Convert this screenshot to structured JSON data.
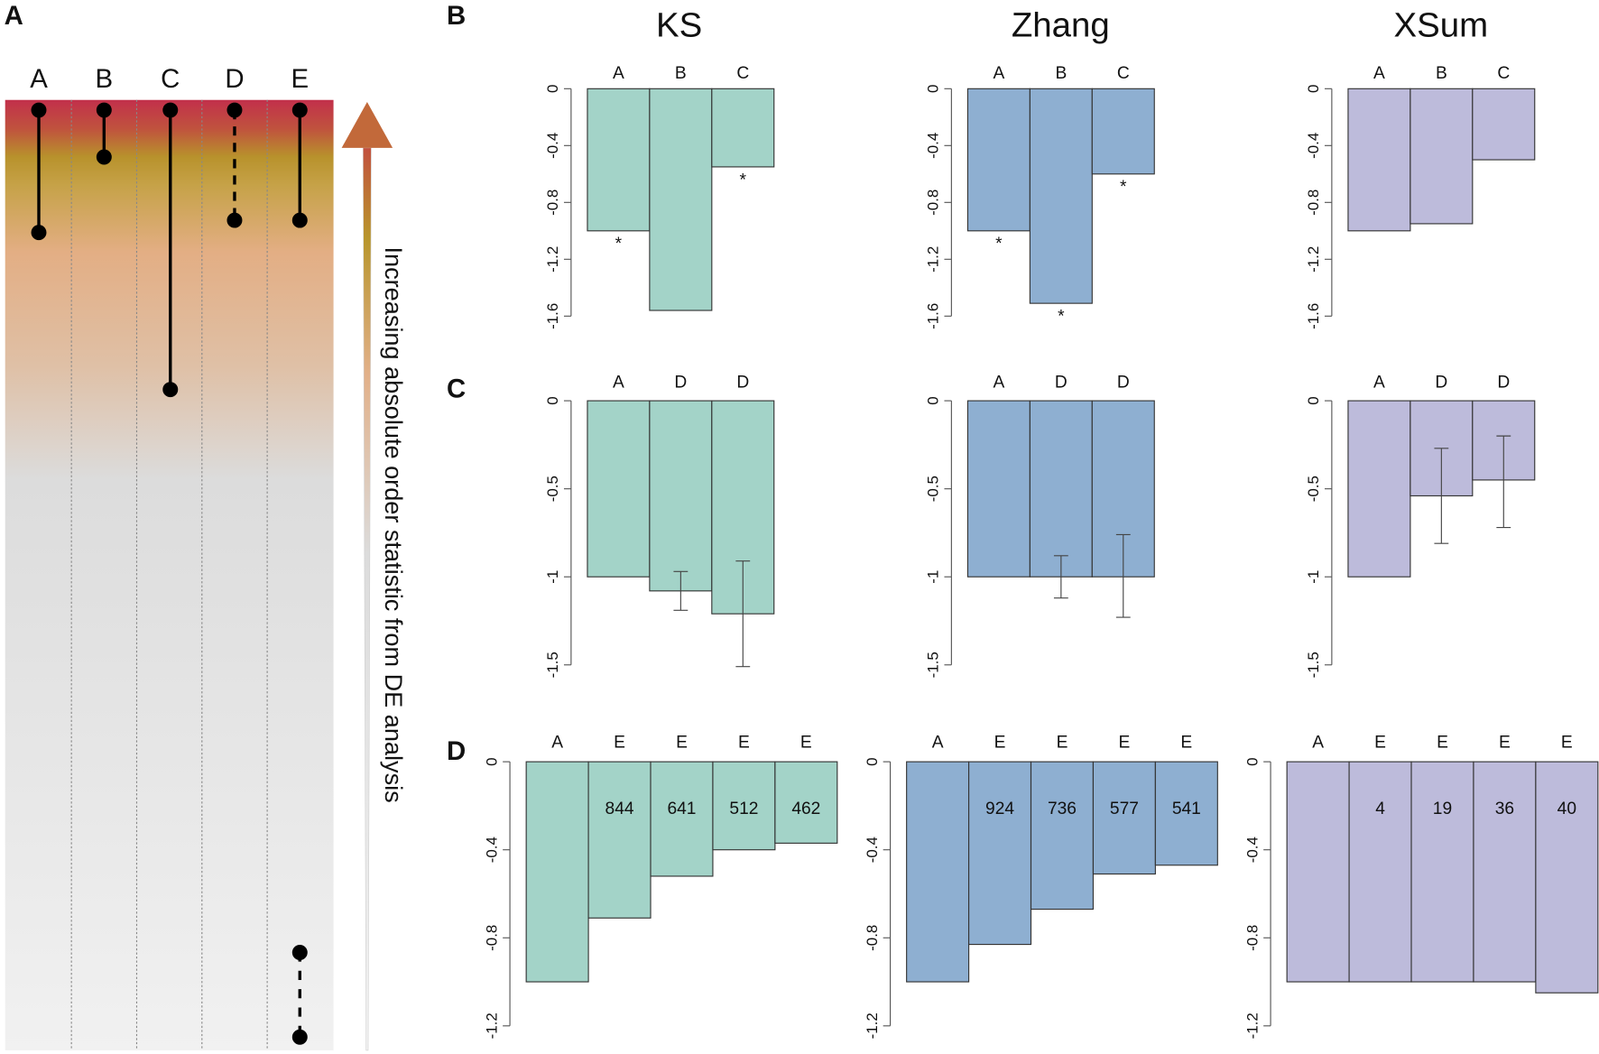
{
  "panel_labels": {
    "a": "A",
    "b": "B",
    "c": "C",
    "d": "D"
  },
  "methods": [
    "KS",
    "Zhang",
    "XSum"
  ],
  "colors": {
    "KS": "#a3d3c8",
    "Zhang": "#8eafd1",
    "XSum": "#bdbbdb"
  },
  "panel_a": {
    "columns": [
      "A",
      "B",
      "C",
      "D",
      "E"
    ],
    "arrow_label": "Increasing absolute order statistic from DE analysis"
  },
  "chart_data": [
    {
      "type": "bar",
      "panel": "B",
      "title": "KS",
      "categories": [
        "A",
        "B",
        "C"
      ],
      "values": [
        -1.0,
        -1.56,
        -0.55
      ],
      "significance": [
        "*",
        "",
        "*"
      ],
      "yticks": [
        "0",
        "-0.4",
        "-0.8",
        "-1.2",
        "-1.6"
      ],
      "ylim": [
        -1.6,
        0
      ]
    },
    {
      "type": "bar",
      "panel": "B",
      "title": "Zhang",
      "categories": [
        "A",
        "B",
        "C"
      ],
      "values": [
        -1.0,
        -1.51,
        -0.6
      ],
      "significance": [
        "*",
        "*",
        "*"
      ],
      "yticks": [
        "0",
        "-0.4",
        "-0.8",
        "-1.2",
        "-1.6"
      ],
      "ylim": [
        -1.6,
        0
      ]
    },
    {
      "type": "bar",
      "panel": "B",
      "title": "XSum",
      "categories": [
        "A",
        "B",
        "C"
      ],
      "values": [
        -1.0,
        -0.95,
        -0.5
      ],
      "significance": [
        "",
        "",
        ""
      ],
      "yticks": [
        "0",
        "-0.4",
        "-0.8",
        "-1.2",
        "-1.6"
      ],
      "ylim": [
        -1.6,
        0
      ]
    },
    {
      "type": "bar",
      "panel": "C",
      "title": "KS",
      "categories": [
        "A",
        "D",
        "D"
      ],
      "values": [
        -1.0,
        -1.08,
        -1.21
      ],
      "error": [
        null,
        [
          -0.97,
          -1.19
        ],
        [
          -0.91,
          -1.51
        ]
      ],
      "yticks": [
        "0",
        "-0.5",
        "-1",
        "-1.5"
      ],
      "ylim": [
        -1.5,
        0
      ]
    },
    {
      "type": "bar",
      "panel": "C",
      "title": "Zhang",
      "categories": [
        "A",
        "D",
        "D"
      ],
      "values": [
        -1.0,
        -1.0,
        -1.0
      ],
      "error": [
        null,
        [
          -0.88,
          -1.12
        ],
        [
          -0.76,
          -1.23
        ]
      ],
      "yticks": [
        "0",
        "-0.5",
        "-1",
        "-1.5"
      ],
      "ylim": [
        -1.5,
        0
      ]
    },
    {
      "type": "bar",
      "panel": "C",
      "title": "XSum",
      "categories": [
        "A",
        "D",
        "D"
      ],
      "values": [
        -1.0,
        -0.54,
        -0.45
      ],
      "error": [
        null,
        [
          -0.27,
          -0.81
        ],
        [
          -0.2,
          -0.72
        ]
      ],
      "yticks": [
        "0",
        "-0.5",
        "-1",
        "-1.5"
      ],
      "ylim": [
        -1.5,
        0
      ]
    },
    {
      "type": "bar",
      "panel": "D",
      "title": "KS",
      "categories": [
        "A",
        "E",
        "E",
        "E",
        "E"
      ],
      "values": [
        -1.0,
        -0.71,
        -0.52,
        -0.4,
        -0.37
      ],
      "labels": [
        "",
        "844",
        "641",
        "512",
        "462"
      ],
      "yticks": [
        "0",
        "-0.4",
        "-0.8",
        "-1.2"
      ],
      "ylim": [
        -1.2,
        0
      ]
    },
    {
      "type": "bar",
      "panel": "D",
      "title": "Zhang",
      "categories": [
        "A",
        "E",
        "E",
        "E",
        "E"
      ],
      "values": [
        -1.0,
        -0.83,
        -0.67,
        -0.51,
        -0.47
      ],
      "labels": [
        "",
        "924",
        "736",
        "577",
        "541"
      ],
      "yticks": [
        "0",
        "-0.4",
        "-0.8",
        "-1.2"
      ],
      "ylim": [
        -1.2,
        0
      ]
    },
    {
      "type": "bar",
      "panel": "D",
      "title": "XSum",
      "categories": [
        "A",
        "E",
        "E",
        "E",
        "E"
      ],
      "values": [
        -1.0,
        -1.0,
        -1.0,
        -1.0,
        -1.05
      ],
      "labels": [
        "",
        "4",
        "19",
        "36",
        "40"
      ],
      "yticks": [
        "0",
        "-0.4",
        "-0.8",
        "-1.2"
      ],
      "ylim": [
        -1.2,
        0
      ]
    }
  ]
}
